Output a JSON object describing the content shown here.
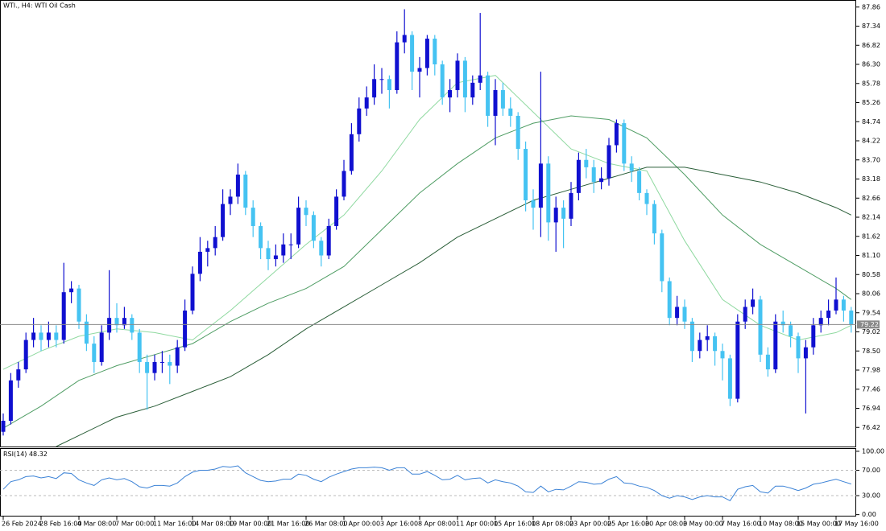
{
  "chart_data": [
    {
      "type": "candlestick",
      "title": "WTI., H4:  WTI Oil Cash",
      "up_color": "#1010d0",
      "down_color": "#45c3f2",
      "categories": [
        "26 Feb 2024",
        null,
        null,
        null,
        null,
        "28 Feb 16:00",
        null,
        null,
        null,
        null,
        "4 Mar 08:00",
        null,
        null,
        null,
        null,
        "7 Mar 00:00",
        null,
        null,
        null,
        null,
        "11 Mar 16:00",
        null,
        null,
        null,
        null,
        "14 Mar 08:00",
        null,
        null,
        null,
        null,
        "19 Mar 00:00",
        null,
        null,
        null,
        null,
        "21 Mar 16:00",
        null,
        null,
        null,
        null,
        "26 Mar 08:00",
        null,
        null,
        null,
        null,
        "1 Apr 00:00",
        null,
        null,
        null,
        null,
        "3 Apr 16:00",
        null,
        null,
        null,
        null,
        "8 Apr 08:00",
        null,
        null,
        null,
        null,
        "11 Apr 00:00",
        null,
        null,
        null,
        null,
        "15 Apr 16:00",
        null,
        null,
        null,
        null,
        "18 Apr 08:00",
        null,
        null,
        null,
        null,
        "23 Apr 00:00",
        null,
        null,
        null,
        null,
        "25 Apr 16:00",
        null,
        null,
        null,
        null,
        "30 Apr 08:00",
        null,
        null,
        null,
        null,
        "3 May 00:00",
        null,
        null,
        null,
        null,
        "7 May 16:00",
        null,
        null,
        null,
        null,
        "10 May 08:00",
        null,
        null,
        null,
        null,
        "15 May 00:00",
        null,
        null,
        null,
        null,
        "17 May 16:00",
        null,
        null
      ],
      "ohlc": [
        [
          76.3,
          76.8,
          76.2,
          76.6
        ],
        [
          76.6,
          77.9,
          76.5,
          77.7
        ],
        [
          77.7,
          78.2,
          77.5,
          78.0
        ],
        [
          78.0,
          79.0,
          77.9,
          78.8
        ],
        [
          78.8,
          79.4,
          78.6,
          79.0
        ],
        [
          79.0,
          79.2,
          78.5,
          78.8
        ],
        [
          78.8,
          79.3,
          78.6,
          79.0
        ],
        [
          79.0,
          79.2,
          78.6,
          78.8
        ],
        [
          78.8,
          80.9,
          78.7,
          80.1
        ],
        [
          80.1,
          80.4,
          79.8,
          80.2
        ],
        [
          80.2,
          80.3,
          79.1,
          79.3
        ],
        [
          79.3,
          79.5,
          78.5,
          78.7
        ],
        [
          78.7,
          78.9,
          77.9,
          78.2
        ],
        [
          78.2,
          79.2,
          78.1,
          79.0
        ],
        [
          79.0,
          80.7,
          78.8,
          79.4
        ],
        [
          79.4,
          79.8,
          79.0,
          79.2
        ],
        [
          79.2,
          79.7,
          79.1,
          79.4
        ],
        [
          79.4,
          79.5,
          78.8,
          79.0
        ],
        [
          79.0,
          79.1,
          77.9,
          78.2
        ],
        [
          78.2,
          78.4,
          76.9,
          77.9
        ],
        [
          77.9,
          78.4,
          77.7,
          78.2
        ],
        [
          78.2,
          78.5,
          77.9,
          78.2
        ],
        [
          78.2,
          78.4,
          77.6,
          78.1
        ],
        [
          78.1,
          78.8,
          77.9,
          78.6
        ],
        [
          78.6,
          79.9,
          78.5,
          79.6
        ],
        [
          79.6,
          80.8,
          79.5,
          80.6
        ],
        [
          80.6,
          81.6,
          80.4,
          81.2
        ],
        [
          81.2,
          81.5,
          80.8,
          81.3
        ],
        [
          81.3,
          81.9,
          81.1,
          81.6
        ],
        [
          81.6,
          82.9,
          81.5,
          82.5
        ],
        [
          82.5,
          82.9,
          82.2,
          82.7
        ],
        [
          82.7,
          83.6,
          82.5,
          83.3
        ],
        [
          83.3,
          83.4,
          82.2,
          82.4
        ],
        [
          82.4,
          82.6,
          81.6,
          81.9
        ],
        [
          81.9,
          82.0,
          81.0,
          81.3
        ],
        [
          81.3,
          81.5,
          80.7,
          81.0
        ],
        [
          81.0,
          81.4,
          80.8,
          81.1
        ],
        [
          81.1,
          81.7,
          80.9,
          81.4
        ],
        [
          81.4,
          81.7,
          81.0,
          81.4
        ],
        [
          81.4,
          82.7,
          81.3,
          82.4
        ],
        [
          82.4,
          82.6,
          81.9,
          82.2
        ],
        [
          82.2,
          82.3,
          81.3,
          81.5
        ],
        [
          81.5,
          81.6,
          80.8,
          81.1
        ],
        [
          81.1,
          82.1,
          81.0,
          81.9
        ],
        [
          81.9,
          82.9,
          81.8,
          82.7
        ],
        [
          82.7,
          83.7,
          82.6,
          83.4
        ],
        [
          83.4,
          84.7,
          83.3,
          84.4
        ],
        [
          84.4,
          85.4,
          84.2,
          85.1
        ],
        [
          85.1,
          85.7,
          84.9,
          85.4
        ],
        [
          85.4,
          86.3,
          85.2,
          85.9
        ],
        [
          85.9,
          86.2,
          85.5,
          85.9
        ],
        [
          85.9,
          86.0,
          85.1,
          85.6
        ],
        [
          85.6,
          87.2,
          85.5,
          86.9
        ],
        [
          86.9,
          87.8,
          86.6,
          87.1
        ],
        [
          87.1,
          87.2,
          85.6,
          86.1
        ],
        [
          86.1,
          86.5,
          85.4,
          86.2
        ],
        [
          86.2,
          87.1,
          86.0,
          87.0
        ],
        [
          87.0,
          87.1,
          86.0,
          86.3
        ],
        [
          86.3,
          86.4,
          85.2,
          85.4
        ],
        [
          85.4,
          85.9,
          85.0,
          85.6
        ],
        [
          85.6,
          86.6,
          85.4,
          86.4
        ],
        [
          86.4,
          86.5,
          85.0,
          85.4
        ],
        [
          85.4,
          86.0,
          85.2,
          85.8
        ],
        [
          85.8,
          87.7,
          85.6,
          86.0
        ],
        [
          86.0,
          86.1,
          84.6,
          84.9
        ],
        [
          84.9,
          85.9,
          84.1,
          85.6
        ],
        [
          85.6,
          85.8,
          84.9,
          85.1
        ],
        [
          85.1,
          85.4,
          84.6,
          84.9
        ],
        [
          84.9,
          85.0,
          83.7,
          84.0
        ],
        [
          84.0,
          84.2,
          82.3,
          82.6
        ],
        [
          82.6,
          82.9,
          81.8,
          82.4
        ],
        [
          82.4,
          86.1,
          81.6,
          83.6
        ],
        [
          83.6,
          83.8,
          81.5,
          82.0
        ],
        [
          82.0,
          82.7,
          81.2,
          82.4
        ],
        [
          82.4,
          82.6,
          81.3,
          82.1
        ],
        [
          82.1,
          83.1,
          81.9,
          82.8
        ],
        [
          82.8,
          83.9,
          82.6,
          83.7
        ],
        [
          83.7,
          84.0,
          83.2,
          83.5
        ],
        [
          83.5,
          83.7,
          82.8,
          83.1
        ],
        [
          83.1,
          83.5,
          82.9,
          83.2
        ],
        [
          83.2,
          84.3,
          83.0,
          84.1
        ],
        [
          84.1,
          84.8,
          83.9,
          84.7
        ],
        [
          84.7,
          84.8,
          83.4,
          83.6
        ],
        [
          83.6,
          83.8,
          83.1,
          83.4
        ],
        [
          83.4,
          83.5,
          82.6,
          82.8
        ],
        [
          82.8,
          82.9,
          82.2,
          82.5
        ],
        [
          82.5,
          82.6,
          81.4,
          81.7
        ],
        [
          81.7,
          81.8,
          80.1,
          80.4
        ],
        [
          80.4,
          80.5,
          79.2,
          79.4
        ],
        [
          79.4,
          80.0,
          79.2,
          79.7
        ],
        [
          79.7,
          79.9,
          79.1,
          79.3
        ],
        [
          79.3,
          79.4,
          78.2,
          78.5
        ],
        [
          78.5,
          79.0,
          78.3,
          78.8
        ],
        [
          78.8,
          79.2,
          78.5,
          78.9
        ],
        [
          78.9,
          79.0,
          78.1,
          78.5
        ],
        [
          78.5,
          78.7,
          77.7,
          78.3
        ],
        [
          78.3,
          78.4,
          77.0,
          77.2
        ],
        [
          77.2,
          79.5,
          77.1,
          79.3
        ],
        [
          79.3,
          79.9,
          79.1,
          79.7
        ],
        [
          79.7,
          80.2,
          79.5,
          79.9
        ],
        [
          79.9,
          80.0,
          78.2,
          78.4
        ],
        [
          78.4,
          78.6,
          77.8,
          78.0
        ],
        [
          78.0,
          79.5,
          77.9,
          79.3
        ],
        [
          79.3,
          79.6,
          79.0,
          79.2
        ],
        [
          79.2,
          79.3,
          78.6,
          78.9
        ],
        [
          78.9,
          79.0,
          77.9,
          78.3
        ],
        [
          78.3,
          78.8,
          76.8,
          78.6
        ],
        [
          78.6,
          79.4,
          78.4,
          79.2
        ],
        [
          79.2,
          79.6,
          79.0,
          79.4
        ],
        [
          79.4,
          79.9,
          79.2,
          79.6
        ],
        [
          79.6,
          80.5,
          79.5,
          79.9
        ],
        [
          79.9,
          80.0,
          79.3,
          79.6
        ],
        [
          79.6,
          79.7,
          79.0,
          79.22
        ]
      ],
      "series": [
        {
          "color": "#8fd9a0",
          "x": [
            0,
            5,
            10,
            15,
            20,
            25,
            30,
            35,
            40,
            45,
            50,
            55,
            60,
            65,
            70,
            75,
            80,
            85,
            90,
            95,
            100,
            105,
            110,
            112
          ],
          "values": [
            78.0,
            78.5,
            78.9,
            79.1,
            79.0,
            78.8,
            79.6,
            80.5,
            81.4,
            82.2,
            83.4,
            84.8,
            85.8,
            86.0,
            85.0,
            84.0,
            83.6,
            83.4,
            81.5,
            79.9,
            79.2,
            78.8,
            79.0,
            79.2
          ]
        },
        {
          "color": "#4f9d64",
          "x": [
            0,
            5,
            10,
            15,
            20,
            25,
            30,
            35,
            40,
            45,
            50,
            55,
            60,
            65,
            70,
            75,
            80,
            85,
            90,
            95,
            100,
            105,
            110,
            112
          ],
          "values": [
            76.4,
            77.0,
            77.7,
            78.1,
            78.4,
            78.7,
            79.3,
            79.8,
            80.2,
            80.8,
            81.8,
            82.8,
            83.6,
            84.3,
            84.7,
            84.9,
            84.8,
            84.3,
            83.3,
            82.2,
            81.4,
            80.8,
            80.2,
            79.9
          ]
        },
        {
          "color": "#2a5e38",
          "x": [
            7,
            10,
            15,
            20,
            25,
            30,
            35,
            40,
            45,
            50,
            55,
            60,
            65,
            70,
            75,
            80,
            85,
            90,
            95,
            100,
            105,
            110,
            112
          ],
          "values": [
            75.9,
            76.2,
            76.7,
            77.0,
            77.4,
            77.8,
            78.4,
            79.1,
            79.7,
            80.3,
            80.9,
            81.6,
            82.1,
            82.6,
            82.9,
            83.2,
            83.5,
            83.5,
            83.3,
            83.1,
            82.8,
            82.4,
            82.2
          ]
        }
      ],
      "price_line": 79.22,
      "ylim": [
        75.9,
        88.03
      ],
      "yticks": [
        87.86,
        87.34,
        86.82,
        {
          "value": 86.3,
          "label": "86.30"
        },
        85.78,
        85.26,
        84.74,
        84.22,
        {
          "value": 83.7,
          "label": "83.70"
        },
        83.18,
        82.66,
        82.14,
        81.62,
        {
          "value": 81.1,
          "label": "81.10"
        },
        80.58,
        80.06,
        79.54,
        79.02,
        {
          "value": 78.5,
          "label": "78.50"
        },
        77.98,
        77.46,
        76.94,
        76.42
      ]
    },
    {
      "type": "line",
      "title": "RSI(14)",
      "color": "#3b82d6",
      "values": [
        40,
        52,
        55,
        60,
        61,
        58,
        60,
        57,
        66,
        65,
        55,
        50,
        46,
        55,
        58,
        55,
        57,
        52,
        44,
        42,
        46,
        46,
        45,
        50,
        60,
        67,
        70,
        70,
        72,
        76,
        75,
        77,
        66,
        60,
        54,
        52,
        53,
        56,
        56,
        64,
        62,
        56,
        52,
        59,
        64,
        68,
        72,
        74,
        74,
        75,
        74,
        70,
        74,
        74,
        64,
        64,
        68,
        62,
        55,
        56,
        62,
        55,
        57,
        58,
        50,
        55,
        52,
        50,
        45,
        36,
        35,
        45,
        36,
        40,
        39,
        45,
        52,
        51,
        48,
        49,
        56,
        60,
        50,
        49,
        45,
        43,
        38,
        30,
        26,
        30,
        28,
        24,
        28,
        30,
        28,
        28,
        22,
        40,
        44,
        46,
        36,
        34,
        45,
        45,
        42,
        38,
        42,
        48,
        50,
        53,
        56,
        52,
        48.32
      ],
      "ylim": [
        -3,
        105
      ],
      "yticks": [
        {
          "value": 100,
          "label": "100.00"
        },
        {
          "value": 70,
          "label": "70.00"
        },
        {
          "value": 30,
          "label": "30.00"
        },
        {
          "value": 0,
          "label": "0.00"
        }
      ]
    }
  ]
}
